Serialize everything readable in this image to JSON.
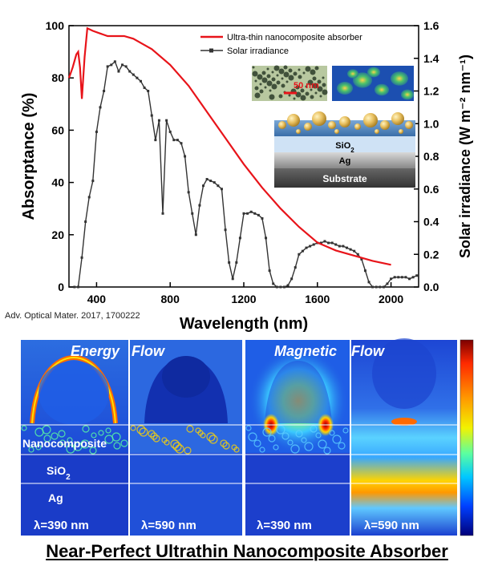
{
  "chart_data": {
    "type": "line",
    "xlabel": "Wavelength (nm)",
    "ylabel_left": "Absorptance (%)",
    "ylabel_right": "Solar irradiance (W m⁻² nm⁻¹)",
    "xlim": [
      250,
      2150
    ],
    "ylim_left": [
      0,
      100
    ],
    "ylim_right": [
      0,
      1.6
    ],
    "x_ticks": [
      400,
      800,
      1200,
      1600,
      2000
    ],
    "y_ticks_left": [
      0,
      20,
      40,
      60,
      80,
      100
    ],
    "y_ticks_right": [
      "0.0",
      "0.2",
      "0.4",
      "0.6",
      "0.8",
      "1.0",
      "1.2",
      "1.4",
      "1.6"
    ],
    "legend": {
      "placement": "top-right"
    },
    "series": [
      {
        "name": "Ultra-thin nanocomposite absorber",
        "axis": "left",
        "color": "#e8141a",
        "x": [
          250,
          270,
          290,
          300,
          310,
          320,
          335,
          350,
          380,
          420,
          460,
          500,
          550,
          600,
          650,
          700,
          800,
          900,
          1000,
          1100,
          1200,
          1300,
          1400,
          1500,
          1600,
          1700,
          1800,
          1900,
          2000
        ],
        "y": [
          80,
          84,
          89,
          90,
          84,
          72,
          88,
          99,
          98,
          97,
          96,
          96,
          96,
          95,
          93,
          91,
          85,
          77,
          67,
          57,
          47,
          38,
          30,
          23,
          17,
          14,
          12,
          10,
          8.5
        ]
      },
      {
        "name": "Solar irradiance",
        "axis": "right",
        "color": "#333333",
        "x": [
          280,
          300,
          320,
          340,
          360,
          380,
          400,
          420,
          440,
          460,
          480,
          500,
          520,
          540,
          560,
          580,
          600,
          620,
          640,
          660,
          680,
          700,
          720,
          740,
          760,
          780,
          800,
          820,
          840,
          860,
          880,
          900,
          920,
          940,
          960,
          980,
          1000,
          1020,
          1040,
          1060,
          1080,
          1100,
          1120,
          1140,
          1160,
          1180,
          1200,
          1220,
          1240,
          1260,
          1280,
          1300,
          1320,
          1340,
          1360,
          1380,
          1400,
          1420,
          1440,
          1460,
          1480,
          1500,
          1520,
          1540,
          1560,
          1580,
          1600,
          1620,
          1640,
          1660,
          1680,
          1700,
          1720,
          1740,
          1760,
          1780,
          1800,
          1820,
          1840,
          1860,
          1880,
          1900,
          1920,
          1940,
          1960,
          1980,
          2000,
          2020,
          2040,
          2060,
          2080,
          2100,
          2120,
          2140
        ],
        "y": [
          0.0,
          0.0,
          0.18,
          0.4,
          0.55,
          0.65,
          0.95,
          1.1,
          1.2,
          1.35,
          1.36,
          1.38,
          1.32,
          1.36,
          1.35,
          1.32,
          1.3,
          1.28,
          1.26,
          1.22,
          1.2,
          1.05,
          0.9,
          1.02,
          0.45,
          1.02,
          0.95,
          0.9,
          0.9,
          0.88,
          0.8,
          0.58,
          0.45,
          0.32,
          0.5,
          0.62,
          0.66,
          0.65,
          0.64,
          0.62,
          0.6,
          0.35,
          0.15,
          0.05,
          0.15,
          0.3,
          0.45,
          0.45,
          0.46,
          0.45,
          0.44,
          0.42,
          0.3,
          0.1,
          0.02,
          0.0,
          0.0,
          0.0,
          0.01,
          0.05,
          0.12,
          0.2,
          0.22,
          0.24,
          0.25,
          0.26,
          0.27,
          0.27,
          0.28,
          0.27,
          0.27,
          0.26,
          0.25,
          0.25,
          0.24,
          0.23,
          0.22,
          0.2,
          0.17,
          0.1,
          0.03,
          0.0,
          0.0,
          0.0,
          0.0,
          0.02,
          0.05,
          0.06,
          0.06,
          0.06,
          0.06,
          0.05,
          0.06,
          0.07
        ]
      }
    ]
  },
  "inset": {
    "scale_bar": "50 nm",
    "layers": [
      {
        "label": "SiO",
        "sub": "2"
      },
      {
        "label": "Ag",
        "sub": ""
      },
      {
        "label": "Substrate",
        "sub": ""
      }
    ]
  },
  "citation": "Adv. Optical Mater. 2017, 1700222",
  "field_maps": {
    "headers": [
      "Energy",
      "Flow",
      "Magnetic",
      "Flow"
    ],
    "layer_labels": [
      "Nanocomposite",
      "SiO",
      "Ag"
    ],
    "layer_label_subscripts": [
      "",
      "2",
      ""
    ],
    "panel_labels": [
      "λ=390 nm",
      "λ=590 nm",
      "λ=390 nm",
      "λ=590 nm"
    ],
    "colorbar_colors": [
      "#7b0000",
      "#ff2a00",
      "#ff9a00",
      "#f2f200",
      "#5cffa0",
      "#00c8ff",
      "#0040ff",
      "#00007a"
    ]
  },
  "footer_title": "Near-Perfect Ultrathin Nanocomposite Absorber"
}
